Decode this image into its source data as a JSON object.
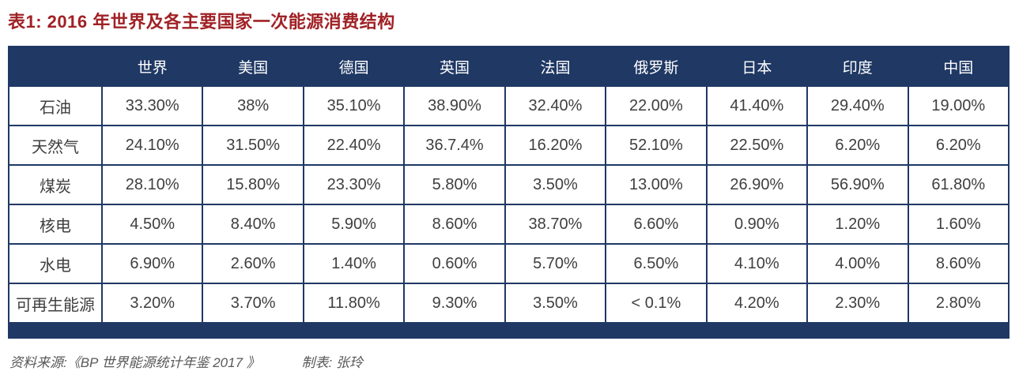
{
  "page": {
    "title": "表1: 2016 年世界及各主要国家一次能源消费结构",
    "footer": {
      "source": "资料来源:《BP 世界能源统计年鉴 2017 》",
      "author": "制表: 张玲"
    }
  },
  "colors": {
    "title_text": "#a02125",
    "header_bg": "#1f3864",
    "table_border": "#1f3864",
    "cell_text": "#3f3f3f",
    "footer_text": "#595959"
  },
  "chart_data": {
    "type": "table",
    "title": "表1: 2016 年世界及各主要国家一次能源消费结构",
    "columns": [
      "",
      "世界",
      "美国",
      "德国",
      "英国",
      "法国",
      "俄罗斯",
      "日本",
      "印度",
      "中国"
    ],
    "rows": [
      {
        "label": "石油",
        "values": [
          "33.30%",
          "38%",
          "35.10%",
          "38.90%",
          "32.40%",
          "22.00%",
          "41.40%",
          "29.40%",
          "19.00%"
        ]
      },
      {
        "label": "天然气",
        "values": [
          "24.10%",
          "31.50%",
          "22.40%",
          "36.7.4%",
          "16.20%",
          "52.10%",
          "22.50%",
          "6.20%",
          "6.20%"
        ]
      },
      {
        "label": "煤炭",
        "values": [
          "28.10%",
          "15.80%",
          "23.30%",
          "5.80%",
          "3.50%",
          "13.00%",
          "26.90%",
          "56.90%",
          "61.80%"
        ]
      },
      {
        "label": "核电",
        "values": [
          "4.50%",
          "8.40%",
          "5.90%",
          "8.60%",
          "38.70%",
          "6.60%",
          "0.90%",
          "1.20%",
          "1.60%"
        ]
      },
      {
        "label": "水电",
        "values": [
          "6.90%",
          "2.60%",
          "1.40%",
          "0.60%",
          "5.70%",
          "6.50%",
          "4.10%",
          "4.00%",
          "8.60%"
        ]
      },
      {
        "label": "可再生能源",
        "values": [
          "3.20%",
          "3.70%",
          "11.80%",
          "9.30%",
          "3.50%",
          "< 0.1%",
          "4.20%",
          "2.30%",
          "2.80%"
        ]
      }
    ],
    "source_note": "资料来源:《BP 世界能源统计年鉴 2017 》",
    "prepared_by": "制表: 张玲"
  }
}
